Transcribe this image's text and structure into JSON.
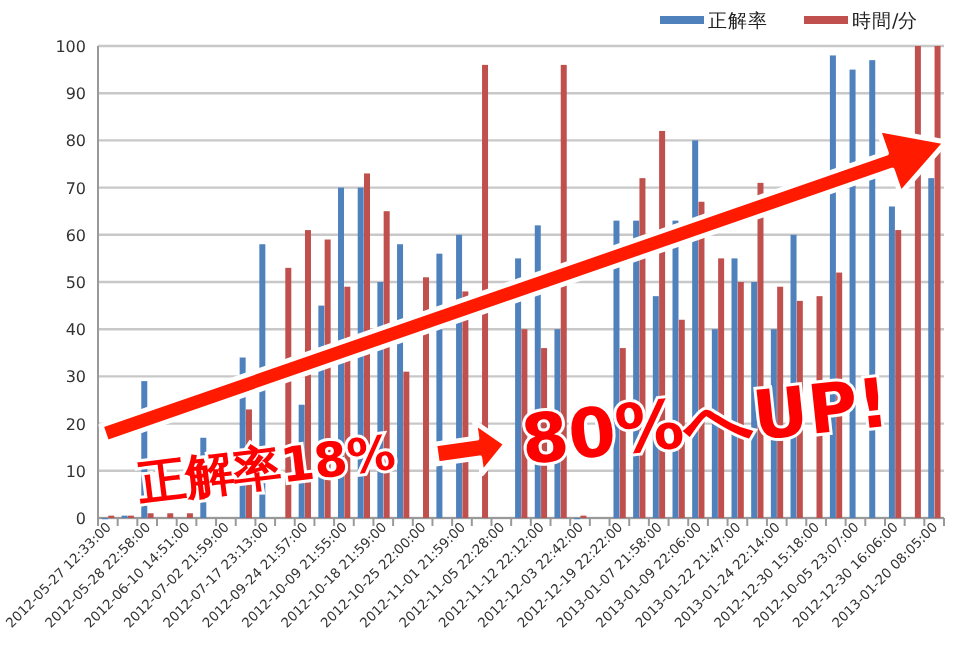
{
  "chart_data": {
    "type": "bar",
    "categories": [
      "2012-05-27 12:33:00",
      null,
      "2012-05-28 22:58:00",
      null,
      "2012-06-10 14:51:00",
      null,
      "2012-07-02 21:59:00",
      null,
      "2012-07-17 23:13:00",
      null,
      "2012-09-24 21:57:00",
      null,
      "2012-10-09 21:55:00",
      null,
      "2012-10-18 21:59:00",
      null,
      "2012-10-25 22:00:00",
      null,
      "2012-11-01 21:59:00",
      null,
      "2012-11-05 22:28:00",
      null,
      "2012-11-12 22:12:00",
      null,
      "2012-12-03 22:42:00",
      null,
      "2012-12-19 22:22:00",
      null,
      "2013-01-07 21:58:00",
      null,
      "2013-01-09 22:06:00",
      null,
      "2013-01-22 21:47:00",
      null,
      "2013-01-24 22:14:00",
      null,
      "2012-12-30 15:18:00",
      null,
      "2012-10-05 23:07:00",
      null,
      "2012-12-30 16:06:00",
      null,
      "2013-01-20 08:05:00"
    ],
    "series": [
      {
        "name": "正解率",
        "color": "#4f81bd",
        "values": [
          0,
          0.5,
          29,
          null,
          null,
          17,
          null,
          34,
          58,
          null,
          24,
          45,
          70,
          70,
          50,
          58,
          null,
          56,
          60,
          null,
          null,
          55,
          62,
          40,
          0,
          null,
          63,
          63,
          47,
          63,
          80,
          40,
          55,
          50,
          40,
          60,
          null,
          98,
          95,
          97,
          66,
          null,
          72
        ]
      },
      {
        "name": "時間/分",
        "color": "#c0504d",
        "values": [
          0.5,
          0.5,
          1,
          1,
          1,
          null,
          null,
          23,
          null,
          53,
          61,
          59,
          49,
          73,
          65,
          31,
          51,
          null,
          48,
          96,
          null,
          40,
          36,
          96,
          0.5,
          null,
          36,
          72,
          82,
          42,
          67,
          55,
          50,
          71,
          49,
          46,
          47,
          52,
          null,
          null,
          61,
          100,
          100
        ]
      }
    ],
    "ylim": [
      0,
      100
    ],
    "yticks": [
      0,
      10,
      20,
      30,
      40,
      50,
      60,
      70,
      80,
      90,
      100
    ],
    "grid": "y",
    "legend": "top right",
    "annotations": [
      "正解率18%",
      "80%へUP!"
    ]
  }
}
